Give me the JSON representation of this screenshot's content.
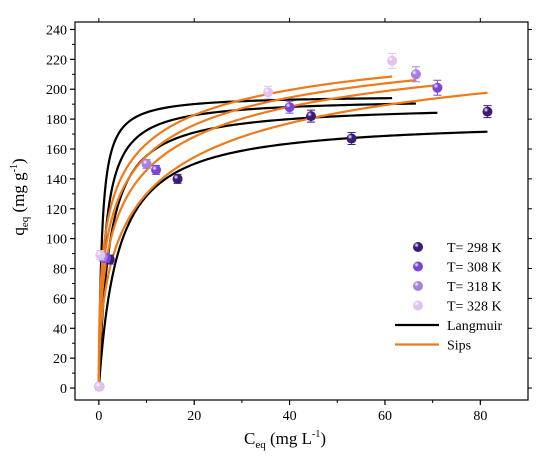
{
  "chart_data": {
    "type": "scatter",
    "xlabel": "C<sub>eq</sub> (mg L<sup>-1</sup>)",
    "ylabel": "q<sub>eq</sub> (mg g<sup>-1</sup>)",
    "xlabel_parts": {
      "base": "C",
      "sub": "eq",
      "unit_open": " (mg L",
      "sup": "-1",
      "unit_close": ")"
    },
    "ylabel_parts": {
      "base": "q",
      "sub": "eq",
      "unit_open": " (mg g",
      "sup": "-1",
      "unit_close": ")"
    },
    "xlim": [
      -5,
      90
    ],
    "ylim": [
      -8,
      245
    ],
    "xticks": [
      0,
      20,
      40,
      60,
      80
    ],
    "yticks": [
      0,
      20,
      40,
      60,
      80,
      100,
      120,
      140,
      160,
      180,
      200,
      220,
      240
    ],
    "grid": false,
    "legend_position": "bottom-right",
    "series": [
      {
        "name": "T= 298 K",
        "color": "#3b1a78",
        "points": [
          {
            "x": 0.1,
            "y": 1,
            "err": 2
          },
          {
            "x": 2.3,
            "y": 86,
            "err": 3
          },
          {
            "x": 16.5,
            "y": 140,
            "err": 3
          },
          {
            "x": 44.5,
            "y": 182,
            "err": 4
          },
          {
            "x": 53.0,
            "y": 167,
            "err": 4
          },
          {
            "x": 81.5,
            "y": 185,
            "err": 4
          }
        ]
      },
      {
        "name": "T= 308 K",
        "color": "#7a45d6",
        "points": [
          {
            "x": 0.1,
            "y": 1,
            "err": 2
          },
          {
            "x": 1.5,
            "y": 87,
            "err": 3
          },
          {
            "x": 12.0,
            "y": 146,
            "err": 3
          },
          {
            "x": 40.0,
            "y": 188,
            "err": 4
          },
          {
            "x": 71.0,
            "y": 201,
            "err": 5
          }
        ]
      },
      {
        "name": "T= 318 K",
        "color": "#a67fe0",
        "points": [
          {
            "x": 0.1,
            "y": 1,
            "err": 2
          },
          {
            "x": 0.8,
            "y": 88,
            "err": 3
          },
          {
            "x": 10.0,
            "y": 150,
            "err": 3
          },
          {
            "x": 66.5,
            "y": 210,
            "err": 5
          }
        ]
      },
      {
        "name": "T= 328 K",
        "color": "#e2c3ee",
        "points": [
          {
            "x": 0.1,
            "y": 1,
            "err": 2
          },
          {
            "x": 0.3,
            "y": 89,
            "err": 3
          },
          {
            "x": 35.5,
            "y": 198,
            "err": 4
          },
          {
            "x": 61.5,
            "y": 219,
            "err": 5
          }
        ]
      }
    ],
    "fits": [
      {
        "name": "Langmuir",
        "color": "#000000",
        "model": "langmuir",
        "qmax": 180,
        "K": 0.25,
        "xmax": 81.5
      },
      {
        "name": "Langmuir",
        "color": "#000000",
        "model": "langmuir",
        "qmax": 190,
        "K": 0.45,
        "xmax": 71
      },
      {
        "name": "Langmuir",
        "color": "#000000",
        "model": "langmuir",
        "qmax": 194,
        "K": 0.8,
        "xmax": 66.5
      },
      {
        "name": "Langmuir",
        "color": "#000000",
        "model": "langmuir",
        "qmax": 196,
        "K": 1.6,
        "xmax": 61.5
      },
      {
        "name": "Sips",
        "color": "#ef7a1a",
        "model": "sips",
        "qmax": 260,
        "K": 0.1,
        "n": 0.55,
        "xmax": 81.5
      },
      {
        "name": "Sips",
        "color": "#ef7a1a",
        "model": "sips",
        "qmax": 260,
        "K": 0.16,
        "n": 0.52,
        "xmax": 71
      },
      {
        "name": "Sips",
        "color": "#ef7a1a",
        "model": "sips",
        "qmax": 260,
        "K": 0.22,
        "n": 0.5,
        "xmax": 66.5
      },
      {
        "name": "Sips",
        "color": "#ef7a1a",
        "model": "sips",
        "qmax": 260,
        "K": 0.3,
        "n": 0.48,
        "xmax": 61.5
      }
    ],
    "legend": [
      {
        "label": "T= 298 K",
        "kind": "marker",
        "color": "#3b1a78"
      },
      {
        "label": "T= 308 K",
        "kind": "marker",
        "color": "#7a45d6"
      },
      {
        "label": "T= 318 K",
        "kind": "marker",
        "color": "#a67fe0"
      },
      {
        "label": "T= 328 K",
        "kind": "marker",
        "color": "#e2c3ee"
      },
      {
        "label": "Langmuir",
        "kind": "line",
        "color": "#000000"
      },
      {
        "label": "Sips",
        "kind": "line",
        "color": "#ef7a1a"
      }
    ]
  }
}
